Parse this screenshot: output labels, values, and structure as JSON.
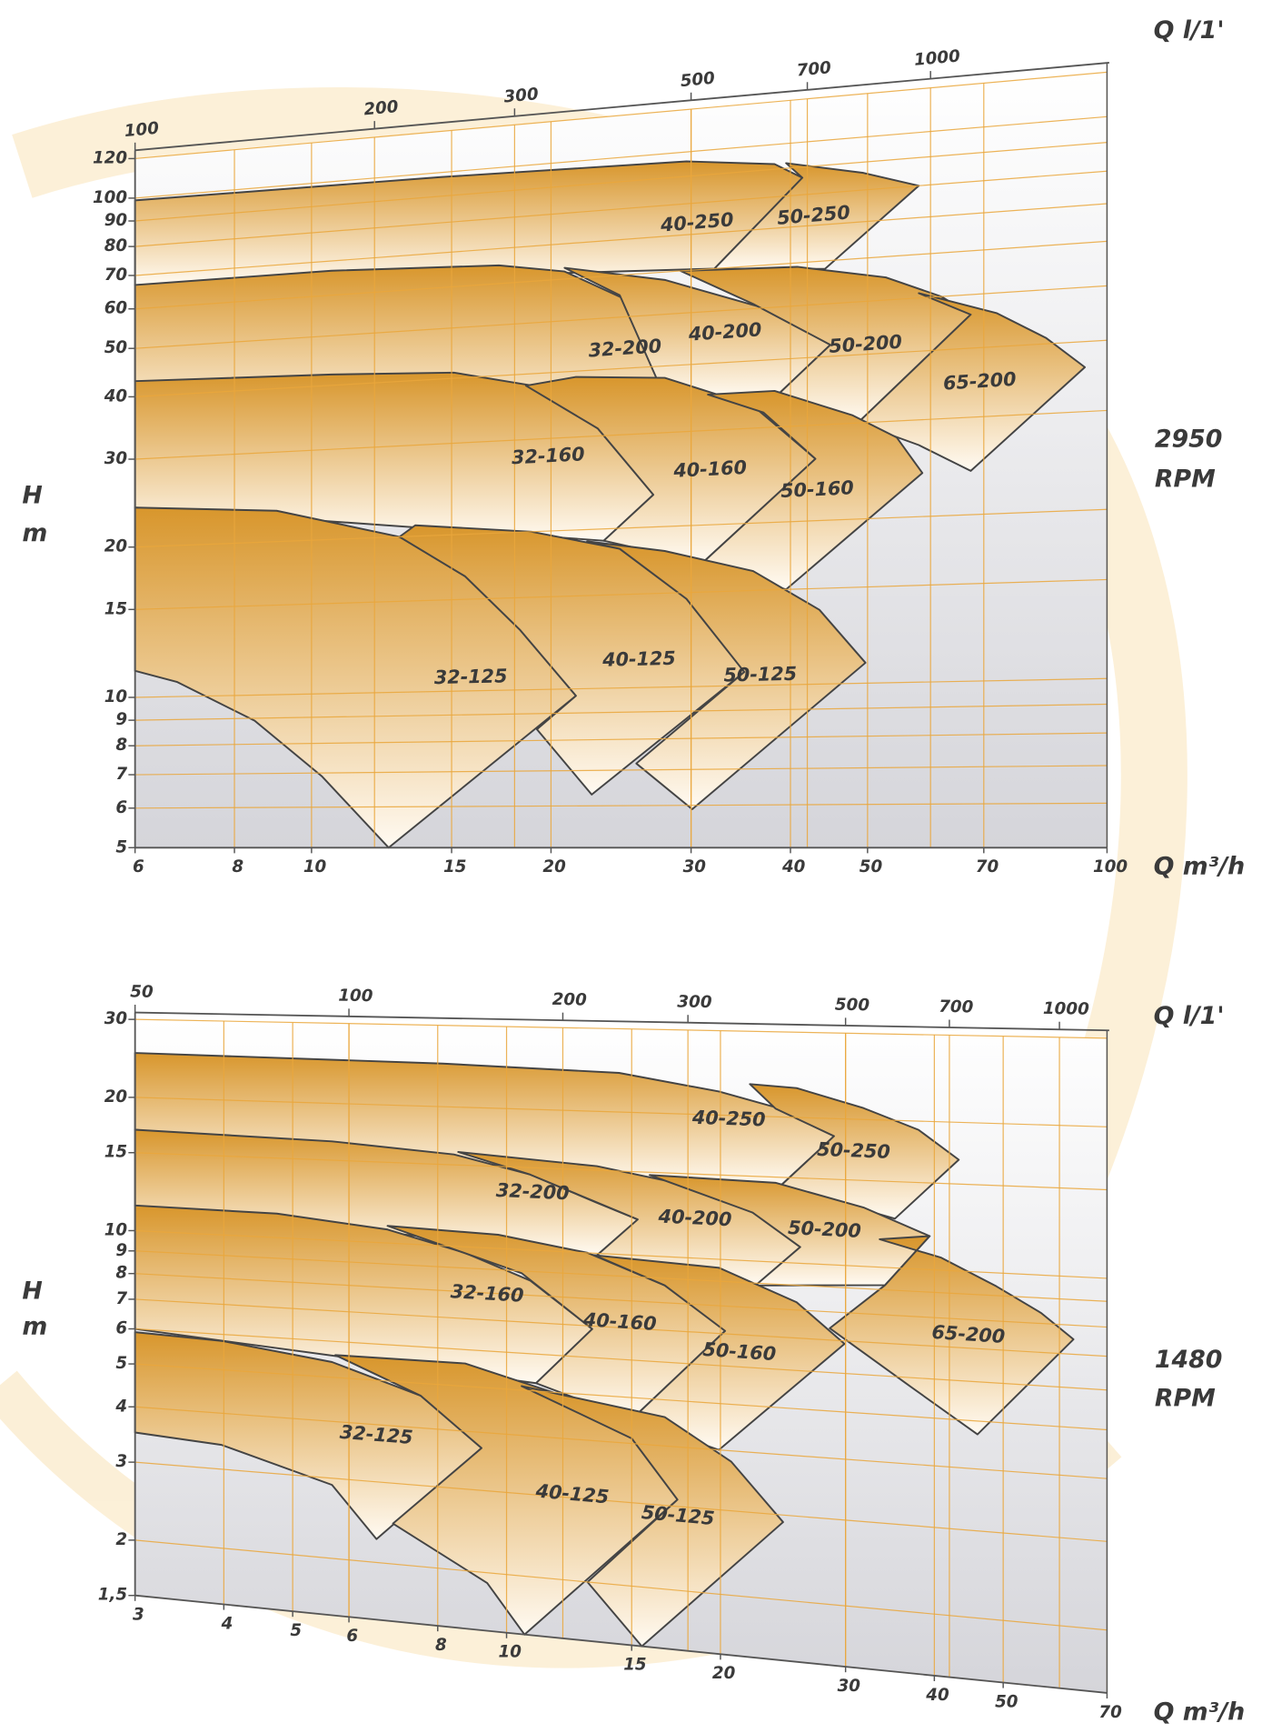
{
  "chart_data": [
    {
      "type": "pump-curves",
      "speed": "2950",
      "speed_unit": "RPM",
      "ylabel": "H",
      "yunit": "m",
      "xlabel": "Q m³/h",
      "x2label": "Q l/1'",
      "log_scale": true,
      "grid": true,
      "color": "#d8962c",
      "grid_color": "#eaa73c",
      "xlim": [
        6,
        100
      ],
      "xticks": [
        6,
        8,
        10,
        15,
        20,
        30,
        40,
        50,
        70,
        100
      ],
      "x2lim": [
        100,
        1666.7
      ],
      "x2ticks": [
        100,
        200,
        300,
        500,
        700,
        1000
      ],
      "ylim": [
        5,
        120
      ],
      "yticks": [
        5,
        6,
        7,
        8,
        9,
        10,
        15,
        20,
        30,
        40,
        50,
        60,
        70,
        80,
        90,
        100,
        120
      ],
      "series": [
        {
          "name": "40-250",
          "x": [
            6,
            14.6,
            29.6,
            38.2,
            41.4,
            32.1,
            14.6,
            6
          ],
          "values": [
            99,
            98,
            96,
            92,
            86,
            60,
            63,
            67
          ]
        },
        {
          "name": "50-250",
          "x": [
            39.5,
            49.4,
            58.0,
            44.2,
            32.1,
            41.4
          ],
          "values": [
            92,
            86,
            80,
            58,
            60,
            86
          ]
        },
        {
          "name": "32-200",
          "x": [
            6,
            10.6,
            17.2,
            20.8,
            26.0,
            33.6,
            27.8,
            6
          ],
          "values": [
            67,
            67,
            65,
            62,
            52,
            39,
            30,
            43
          ]
        },
        {
          "name": "40-200",
          "x": [
            20.8,
            27.8,
            37.0,
            44.9,
            38.2,
            27.8,
            24.4
          ],
          "values": [
            63,
            58,
            50,
            42,
            34,
            35,
            55
          ]
        },
        {
          "name": "50-200",
          "x": [
            29.1,
            40.8,
            52.7,
            61.9,
            67.4,
            48.6,
            38.2,
            44.9,
            35.9
          ],
          "values": [
            60,
            59,
            55,
            50,
            46,
            30,
            34,
            42,
            51
          ]
        },
        {
          "name": "65-200",
          "x": [
            58.0,
            72.6,
            83.8,
            93.8,
            67.4,
            58.0,
            48.6,
            67.4
          ],
          "values": [
            51,
            46,
            41,
            36,
            24,
            27,
            30,
            46
          ]
        },
        {
          "name": "32-160",
          "x": [
            6,
            10.6,
            15.1,
            18.9,
            22.9,
            26.9,
            23.3,
            6
          ],
          "values": [
            43,
            42,
            41,
            38,
            31,
            23,
            19,
            24
          ]
        },
        {
          "name": "40-160",
          "x": [
            18.6,
            21.5,
            27.8,
            35.9,
            43.0,
            31.0,
            23.3,
            26.9,
            22.9
          ],
          "values": [
            38,
            39,
            38,
            33,
            26,
            17,
            19,
            23,
            31
          ]
        },
        {
          "name": "50-160",
          "x": [
            31.5,
            38.2,
            47.9,
            54.4,
            58.6,
            39.5,
            31.0,
            43.0,
            37.0
          ],
          "values": [
            35,
            35,
            31,
            28,
            24,
            15,
            17,
            26,
            32
          ]
        },
        {
          "name": "32-125",
          "x": [
            6,
            9.04,
            12.9,
            15.6,
            18.3,
            21.5,
            12.5,
            10.3,
            8.48,
            6.77,
            6
          ],
          "values": [
            24,
            23,
            20,
            16.6,
            13,
            9.7,
            5,
            6.9,
            8.9,
            10.7,
            11.3
          ]
        },
        {
          "name": "40-125",
          "x": [
            12.9,
            13.5,
            18.9,
            24.4,
            29.6,
            35.0,
            22.5,
            19.2,
            21.5,
            18.3,
            15.6
          ],
          "values": [
            20,
            21,
            20,
            18.3,
            14.6,
            10.6,
            6.3,
            8.4,
            9.7,
            13,
            16.6
          ]
        },
        {
          "name": "50-125",
          "x": [
            22.2,
            27.8,
            35.9,
            43.5,
            49.7,
            30.1,
            25.6,
            35.0,
            29.6,
            24.4
          ],
          "values": [
            19,
            18,
            16.3,
            13.7,
            10.9,
            5.9,
            7.2,
            10.6,
            14.6,
            18.3
          ]
        }
      ]
    },
    {
      "type": "pump-curves",
      "speed": "1480",
      "speed_unit": "RPM",
      "ylabel": "H",
      "yunit": "m",
      "xlabel": "Q m³/h",
      "x2label": "Q l/1'",
      "log_scale": true,
      "grid": true,
      "color": "#d8962c",
      "grid_color": "#eaa73c",
      "xlim": [
        3,
        70
      ],
      "xticks": [
        3,
        4,
        5,
        6,
        8,
        10,
        15,
        20,
        30,
        40,
        50,
        70
      ],
      "x2lim": [
        50,
        1166.7
      ],
      "x2ticks": [
        50,
        100,
        200,
        300,
        500,
        700,
        1000
      ],
      "ylim": [
        1.5,
        30
      ],
      "yticks": [
        {
          "value": 1.5,
          "label": "1,5"
        },
        2,
        3,
        4,
        5,
        6,
        7,
        8,
        9,
        10,
        15,
        20,
        30
      ],
      "series": [
        {
          "name": "40-250",
          "x": [
            3,
            8.13,
            14.4,
            19.9,
            25.6,
            28.9,
            24.3,
            11.6,
            3
          ],
          "values": [
            25.2,
            24.8,
            24.2,
            22.4,
            20.4,
            18.4,
            14.4,
            14.6,
            16.9
          ]
        },
        {
          "name": "50-250",
          "x": [
            22.0,
            25.6,
            31.8,
            38.0,
            43.3,
            35.2,
            24.3,
            28.9,
            23.9
          ],
          "values": [
            23.3,
            23.0,
            21.1,
            19.2,
            16.8,
            12.6,
            14.4,
            18.4,
            20.8
          ]
        },
        {
          "name": "32-200",
          "x": [
            3,
            5.68,
            8.43,
            10.8,
            13.4,
            15.3,
            13.4,
            3
          ],
          "values": [
            16.9,
            16.5,
            15.8,
            14.5,
            12.8,
            11.9,
            9.9,
            11.4
          ]
        },
        {
          "name": "40-200",
          "x": [
            8.55,
            13.4,
            17.9,
            22.2,
            25.9,
            22.4,
            13.4,
            15.3,
            10.8
          ],
          "values": [
            16.0,
            15.3,
            14.2,
            12.6,
            10.8,
            8.9,
            9.9,
            11.9,
            14.5
          ]
        },
        {
          "name": "50-200",
          "x": [
            15.9,
            23.9,
            31.8,
            39.4,
            34.1,
            22.4,
            25.9,
            22.2
          ],
          "values": [
            14.8,
            14.6,
            13.2,
            11.7,
            9.2,
            8.9,
            10.8,
            12.6
          ]
        },
        {
          "name": "65-200",
          "x": [
            33.5,
            40.9,
            48.9,
            56.5,
            62.8,
            46.0,
            36.7,
            28.5,
            34.1,
            39.4
          ],
          "values": [
            11.4,
            10.6,
            9.4,
            8.4,
            7.5,
            4.7,
            5.8,
            7.4,
            9.2,
            11.7
          ]
        },
        {
          "name": "32-160",
          "x": [
            3,
            4.75,
            6.8,
            8.74,
            10.8,
            13.2,
            11.0,
            3
          ],
          "values": [
            11.4,
            11.3,
            10.7,
            9.7,
            8.6,
            6.9,
            5.2,
            6.0
          ]
        },
        {
          "name": "40-160",
          "x": [
            6.8,
            9.73,
            13.0,
            16.7,
            20.3,
            15.0,
            11.0,
            13.2,
            10.5
          ],
          "values": [
            10.9,
            10.7,
            10.0,
            8.7,
            7.1,
            4.5,
            5.2,
            6.9,
            8.9
          ]
        },
        {
          "name": "50-160",
          "x": [
            13.3,
            19.9,
            25.6,
            29.9,
            19.9,
            15.0,
            20.3,
            16.7
          ],
          "values": [
            9.9,
            9.6,
            8.3,
            6.9,
            4.0,
            4.5,
            7.1,
            8.7
          ]
        },
        {
          "name": "32-125",
          "x": [
            3,
            3.97,
            5.68,
            7.57,
            9.22,
            6.56,
            5.68,
            3.97,
            3
          ],
          "values": [
            5.9,
            5.8,
            5.4,
            4.7,
            3.7,
            2.25,
            2.9,
            3.4,
            3.5
          ]
        },
        {
          "name": "40-125",
          "x": [
            5.74,
            8.74,
            11.6,
            15.0,
            17.4,
            10.6,
            9.39,
            6.92,
            9.22,
            7.57
          ],
          "values": [
            5.6,
            5.6,
            5.0,
            4.1,
            3.1,
            1.5,
            1.9,
            2.45,
            3.7,
            4.7
          ]
        },
        {
          "name": "50-125",
          "x": [
            10.5,
            16.7,
            20.7,
            24.5,
            15.5,
            13.0,
            17.4,
            15.0
          ],
          "values": [
            5.1,
            4.6,
            3.8,
            2.9,
            1.5,
            2.0,
            3.1,
            4.1
          ]
        }
      ]
    }
  ]
}
